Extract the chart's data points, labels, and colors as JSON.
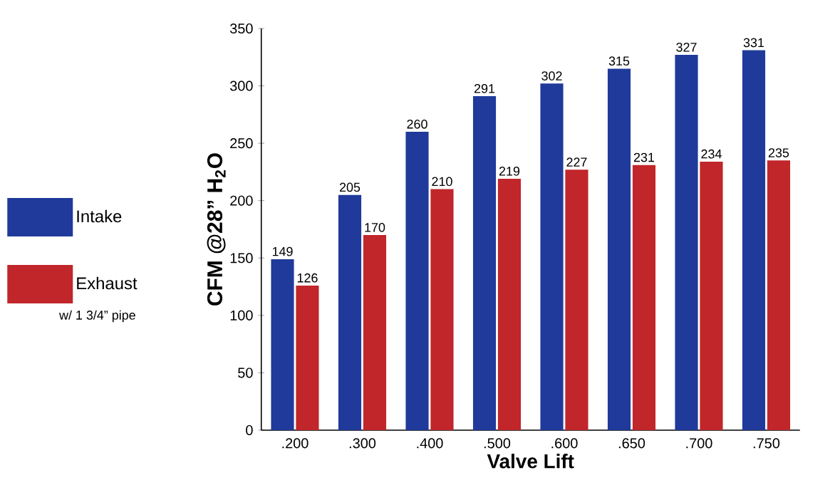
{
  "chart_data": {
    "type": "bar",
    "xlabel": "Valve Lift",
    "ylabel": "CFM @28” H$_{2}$O",
    "categories": [
      ".200",
      ".300",
      ".400",
      ".500",
      ".600",
      ".650",
      ".700",
      ".750"
    ],
    "series": [
      {
        "name": "Intake",
        "color": "#1f3a9a",
        "values": [
          149,
          205,
          260,
          291,
          302,
          315,
          327,
          331
        ]
      },
      {
        "name": "Exhaust",
        "color": "#c0262a",
        "values": [
          126,
          170,
          210,
          219,
          227,
          231,
          234,
          235
        ]
      }
    ],
    "annotations": [
      "w/ 1 3/4” pipe"
    ],
    "ylim": [
      0,
      350
    ],
    "yticks": [
      0,
      50,
      100,
      150,
      200,
      250,
      300,
      350
    ],
    "data_labels": true,
    "legend": "left",
    "grid": false
  }
}
